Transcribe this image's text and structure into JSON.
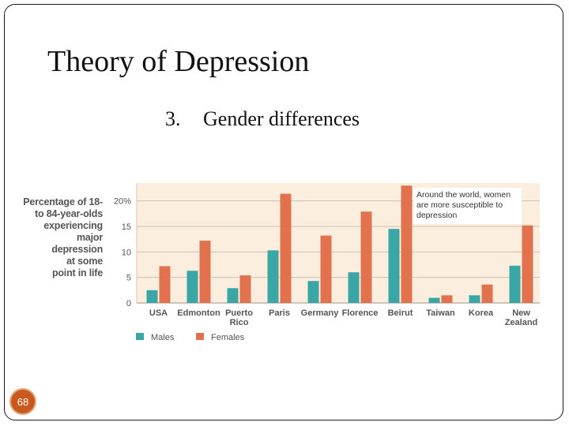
{
  "slide": {
    "title": "Theory of Depression",
    "subtitle_number": "3.",
    "subtitle_text": "Gender differences",
    "page_number": "68"
  },
  "colors": {
    "males": "#3aa6a6",
    "females": "#e2714e",
    "plot_bg": "#fbeede",
    "page_badge": "#c85a1f"
  },
  "chart_data": {
    "type": "bar",
    "title": "",
    "ylabel": "Percentage of 18-to 84-year-olds experiencing major depression at some point in life",
    "ylabel_lines": [
      "Percentage of 18-",
      "to 84-year-olds",
      "experiencing",
      "major",
      "depression",
      "at some",
      "point in life"
    ],
    "xlabel": "",
    "ylim": [
      0,
      23.5
    ],
    "yticks": [
      0,
      5,
      10,
      15,
      20
    ],
    "ytick_labels": [
      "0",
      "5",
      "10",
      "15",
      "20%"
    ],
    "categories": [
      [
        "USA"
      ],
      [
        "Edmonton"
      ],
      [
        "Puerto",
        "Rico"
      ],
      [
        "Paris"
      ],
      [
        "Germany"
      ],
      [
        "Florence"
      ],
      [
        "Beirut"
      ],
      [
        "Taiwan"
      ],
      [
        "Korea"
      ],
      [
        "New",
        "Zealand"
      ]
    ],
    "series": [
      {
        "name": "Males",
        "values": [
          2.5,
          6.3,
          2.9,
          10.3,
          4.3,
          6.0,
          14.5,
          1.0,
          1.5,
          7.3
        ]
      },
      {
        "name": "Females",
        "values": [
          7.2,
          12.2,
          5.4,
          21.4,
          13.2,
          17.9,
          23.0,
          1.5,
          3.6,
          15.2
        ]
      }
    ],
    "annotation": [
      "Around the world, women",
      "are more susceptible to",
      "depression"
    ],
    "legend_position": "bottom-left"
  }
}
